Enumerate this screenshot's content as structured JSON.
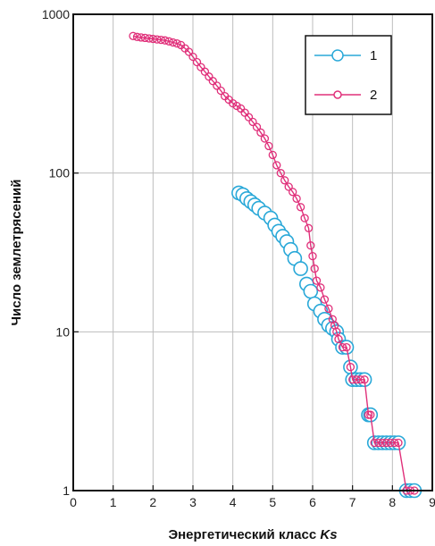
{
  "chart_data": {
    "type": "scatter",
    "title": "",
    "xlabel": "Энергетический класс",
    "xlabel_symbol": "Ks",
    "ylabel": "Число землетрясений",
    "xlim": [
      0,
      9
    ],
    "ylim": [
      1,
      1000
    ],
    "y_scale": "log",
    "grid": true,
    "legend_position": "top-right",
    "x_ticks": [
      "0",
      "1",
      "2",
      "3",
      "4",
      "5",
      "6",
      "7",
      "8",
      "9"
    ],
    "y_ticks": [
      {
        "value": 1,
        "label": "1"
      },
      {
        "value": 10,
        "label": "10"
      },
      {
        "value": 100,
        "label": "100"
      },
      {
        "value": 1000,
        "label": "1000"
      }
    ],
    "series": [
      {
        "name": "1",
        "color": "#29a8d8",
        "marker": "open-circle-large",
        "connect": false,
        "points": [
          [
            4.15,
            75
          ],
          [
            4.25,
            73
          ],
          [
            4.35,
            69
          ],
          [
            4.45,
            66
          ],
          [
            4.55,
            63
          ],
          [
            4.65,
            60
          ],
          [
            4.8,
            56
          ],
          [
            4.95,
            52
          ],
          [
            5.05,
            47
          ],
          [
            5.15,
            43
          ],
          [
            5.25,
            40
          ],
          [
            5.35,
            37
          ],
          [
            5.45,
            33
          ],
          [
            5.55,
            29
          ],
          [
            5.7,
            25
          ],
          [
            5.85,
            20
          ],
          [
            5.95,
            18
          ],
          [
            6.05,
            15
          ],
          [
            6.2,
            13.5
          ],
          [
            6.3,
            12
          ],
          [
            6.4,
            11
          ],
          [
            6.5,
            10.5
          ],
          [
            6.6,
            10
          ],
          [
            6.65,
            9
          ],
          [
            6.75,
            8
          ],
          [
            6.85,
            8
          ],
          [
            6.95,
            6
          ],
          [
            7.0,
            5
          ],
          [
            7.1,
            5
          ],
          [
            7.2,
            5
          ],
          [
            7.3,
            5
          ],
          [
            7.4,
            3
          ],
          [
            7.45,
            3
          ],
          [
            7.55,
            2
          ],
          [
            7.65,
            2
          ],
          [
            7.75,
            2
          ],
          [
            7.85,
            2
          ],
          [
            7.95,
            2
          ],
          [
            8.05,
            2
          ],
          [
            8.15,
            2
          ],
          [
            8.35,
            1
          ],
          [
            8.45,
            1
          ],
          [
            8.55,
            1
          ]
        ]
      },
      {
        "name": "2",
        "color": "#e0307a",
        "marker": "open-circle-small",
        "connect": true,
        "points": [
          [
            1.5,
            730
          ],
          [
            1.6,
            720
          ],
          [
            1.7,
            715
          ],
          [
            1.8,
            710
          ],
          [
            1.9,
            705
          ],
          [
            2.0,
            700
          ],
          [
            2.1,
            695
          ],
          [
            2.2,
            690
          ],
          [
            2.3,
            685
          ],
          [
            2.4,
            675
          ],
          [
            2.5,
            665
          ],
          [
            2.6,
            655
          ],
          [
            2.7,
            640
          ],
          [
            2.8,
            610
          ],
          [
            2.9,
            580
          ],
          [
            3.0,
            540
          ],
          [
            3.1,
            500
          ],
          [
            3.2,
            465
          ],
          [
            3.3,
            435
          ],
          [
            3.4,
            405
          ],
          [
            3.5,
            380
          ],
          [
            3.6,
            355
          ],
          [
            3.7,
            330
          ],
          [
            3.8,
            305
          ],
          [
            3.9,
            290
          ],
          [
            4.0,
            275
          ],
          [
            4.1,
            265
          ],
          [
            4.2,
            255
          ],
          [
            4.3,
            240
          ],
          [
            4.4,
            225
          ],
          [
            4.5,
            210
          ],
          [
            4.6,
            195
          ],
          [
            4.7,
            180
          ],
          [
            4.8,
            165
          ],
          [
            4.9,
            148
          ],
          [
            5.0,
            130
          ],
          [
            5.1,
            112
          ],
          [
            5.2,
            100
          ],
          [
            5.3,
            90
          ],
          [
            5.4,
            82
          ],
          [
            5.5,
            76
          ],
          [
            5.6,
            69
          ],
          [
            5.7,
            61
          ],
          [
            5.8,
            52
          ],
          [
            5.9,
            45
          ],
          [
            5.95,
            35
          ],
          [
            6.0,
            30
          ],
          [
            6.05,
            25
          ],
          [
            6.1,
            21
          ],
          [
            6.2,
            19
          ],
          [
            6.3,
            16
          ],
          [
            6.4,
            14
          ],
          [
            6.5,
            12
          ],
          [
            6.55,
            11
          ],
          [
            6.6,
            10
          ],
          [
            6.65,
            9
          ],
          [
            6.75,
            8
          ],
          [
            6.85,
            8
          ],
          [
            6.95,
            6
          ],
          [
            7.0,
            5
          ],
          [
            7.1,
            5
          ],
          [
            7.2,
            5
          ],
          [
            7.3,
            5
          ],
          [
            7.4,
            3
          ],
          [
            7.45,
            3
          ],
          [
            7.55,
            2
          ],
          [
            7.65,
            2
          ],
          [
            7.75,
            2
          ],
          [
            7.85,
            2
          ],
          [
            7.95,
            2
          ],
          [
            8.05,
            2
          ],
          [
            8.15,
            2
          ],
          [
            8.35,
            1
          ],
          [
            8.45,
            1
          ],
          [
            8.55,
            1
          ]
        ]
      }
    ]
  }
}
